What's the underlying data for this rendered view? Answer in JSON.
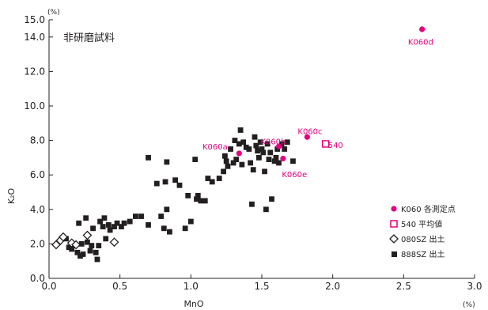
{
  "chart_data": {
    "type": "scatter",
    "inset_title": "非研磨試料",
    "xlabel": "MnO",
    "ylabel": "K₂O",
    "x_unit": "(%)",
    "y_unit": "(%)",
    "xlim": [
      0,
      3.0
    ],
    "ylim": [
      0,
      15.0
    ],
    "x_ticks": [
      "0.0",
      "0.5",
      "1.0",
      "1.5",
      "2.0",
      "2.5",
      "3.0"
    ],
    "y_ticks": [
      "0.0",
      "2.0",
      "4.0",
      "6.0",
      "8.0",
      "10.0",
      "12.0",
      "14.0",
      "15.0"
    ],
    "grid": false,
    "legend_position": "bottom-right",
    "colors": {
      "accent": "#e6007e",
      "ink": "#231f20"
    },
    "legend": [
      {
        "marker": "filled-circle",
        "label": "K060 各測定点"
      },
      {
        "marker": "open-square",
        "label": "540 平均値"
      },
      {
        "marker": "open-diamond",
        "label": "080SZ 出土"
      },
      {
        "marker": "filled-square",
        "label": "888SZ 出土"
      }
    ],
    "annotations": [
      {
        "text": "K060d",
        "x": 2.62,
        "y": 13.75
      },
      {
        "text": "K060c",
        "x": 1.84,
        "y": 8.55
      },
      {
        "text": "K060b",
        "x": 1.58,
        "y": 7.95
      },
      {
        "text": "K060a",
        "x": 1.17,
        "y": 7.65
      },
      {
        "text": "K060e",
        "x": 1.73,
        "y": 6.05
      },
      {
        "text": "540",
        "x": 2.02,
        "y": 7.75
      }
    ],
    "series": [
      {
        "name": "K060 各測定点",
        "marker": "filled-circle",
        "points": [
          [
            2.63,
            14.45
          ],
          [
            1.82,
            8.2
          ],
          [
            1.62,
            7.65
          ],
          [
            1.34,
            7.25
          ],
          [
            1.65,
            6.95
          ]
        ]
      },
      {
        "name": "540 平均値",
        "marker": "open-square",
        "points": [
          [
            1.95,
            7.8
          ]
        ]
      },
      {
        "name": "080SZ 出土",
        "marker": "open-diamond",
        "points": [
          [
            0.05,
            1.95
          ],
          [
            0.08,
            2.2
          ],
          [
            0.1,
            2.4
          ],
          [
            0.16,
            2.05
          ],
          [
            0.19,
            1.95
          ],
          [
            0.27,
            2.5
          ],
          [
            0.46,
            2.1
          ]
        ]
      },
      {
        "name": "888SZ 出土",
        "marker": "filled-square",
        "points": [
          [
            0.12,
            2.3
          ],
          [
            0.14,
            1.8
          ],
          [
            0.16,
            1.7
          ],
          [
            0.18,
            1.9
          ],
          [
            0.2,
            1.5
          ],
          [
            0.21,
            3.2
          ],
          [
            0.22,
            1.3
          ],
          [
            0.23,
            2.0
          ],
          [
            0.24,
            1.4
          ],
          [
            0.26,
            3.5
          ],
          [
            0.27,
            2.1
          ],
          [
            0.29,
            1.6
          ],
          [
            0.3,
            1.9
          ],
          [
            0.31,
            2.9
          ],
          [
            0.33,
            1.5
          ],
          [
            0.34,
            1.1
          ],
          [
            0.35,
            1.9
          ],
          [
            0.36,
            3.3
          ],
          [
            0.38,
            3.0
          ],
          [
            0.39,
            3.5
          ],
          [
            0.4,
            2.3
          ],
          [
            0.42,
            3.1
          ],
          [
            0.43,
            2.8
          ],
          [
            0.46,
            3.0
          ],
          [
            0.48,
            3.2
          ],
          [
            0.51,
            3.0
          ],
          [
            0.53,
            3.2
          ],
          [
            0.57,
            3.3
          ],
          [
            0.61,
            3.6
          ],
          [
            0.65,
            3.6
          ],
          [
            0.7,
            3.1
          ],
          [
            0.7,
            7.0
          ],
          [
            0.76,
            5.5
          ],
          [
            0.79,
            3.6
          ],
          [
            0.81,
            2.9
          ],
          [
            0.82,
            5.6
          ],
          [
            0.83,
            4.0
          ],
          [
            0.83,
            6.75
          ],
          [
            0.85,
            2.7
          ],
          [
            0.89,
            5.7
          ],
          [
            0.92,
            5.4
          ],
          [
            0.96,
            2.9
          ],
          [
            0.98,
            4.8
          ],
          [
            1.0,
            3.3
          ],
          [
            1.03,
            6.9
          ],
          [
            1.04,
            4.6
          ],
          [
            1.05,
            4.8
          ],
          [
            1.07,
            4.5
          ],
          [
            1.1,
            4.5
          ],
          [
            1.12,
            5.8
          ],
          [
            1.15,
            5.6
          ],
          [
            1.2,
            5.8
          ],
          [
            1.23,
            6.2
          ],
          [
            1.24,
            7.1
          ],
          [
            1.25,
            6.8
          ],
          [
            1.26,
            6.5
          ],
          [
            1.28,
            7.5
          ],
          [
            1.3,
            6.7
          ],
          [
            1.31,
            8.0
          ],
          [
            1.32,
            6.9
          ],
          [
            1.34,
            7.8
          ],
          [
            1.35,
            8.6
          ],
          [
            1.36,
            6.6
          ],
          [
            1.37,
            7.9
          ],
          [
            1.39,
            7.6
          ],
          [
            1.41,
            7.5
          ],
          [
            1.42,
            6.7
          ],
          [
            1.43,
            4.3
          ],
          [
            1.44,
            6.3
          ],
          [
            1.45,
            8.2
          ],
          [
            1.46,
            7.7
          ],
          [
            1.47,
            7.4
          ],
          [
            1.48,
            7.0
          ],
          [
            1.49,
            7.9
          ],
          [
            1.5,
            7.5
          ],
          [
            1.51,
            7.3
          ],
          [
            1.52,
            6.2
          ],
          [
            1.53,
            4.0
          ],
          [
            1.54,
            7.8
          ],
          [
            1.55,
            6.9
          ],
          [
            1.56,
            7.3
          ],
          [
            1.57,
            4.6
          ],
          [
            1.59,
            6.8
          ],
          [
            1.6,
            7.0
          ],
          [
            1.61,
            7.5
          ],
          [
            1.62,
            6.7
          ],
          [
            1.64,
            7.8
          ],
          [
            1.66,
            7.5
          ],
          [
            1.68,
            7.9
          ],
          [
            1.72,
            6.8
          ]
        ]
      }
    ]
  }
}
